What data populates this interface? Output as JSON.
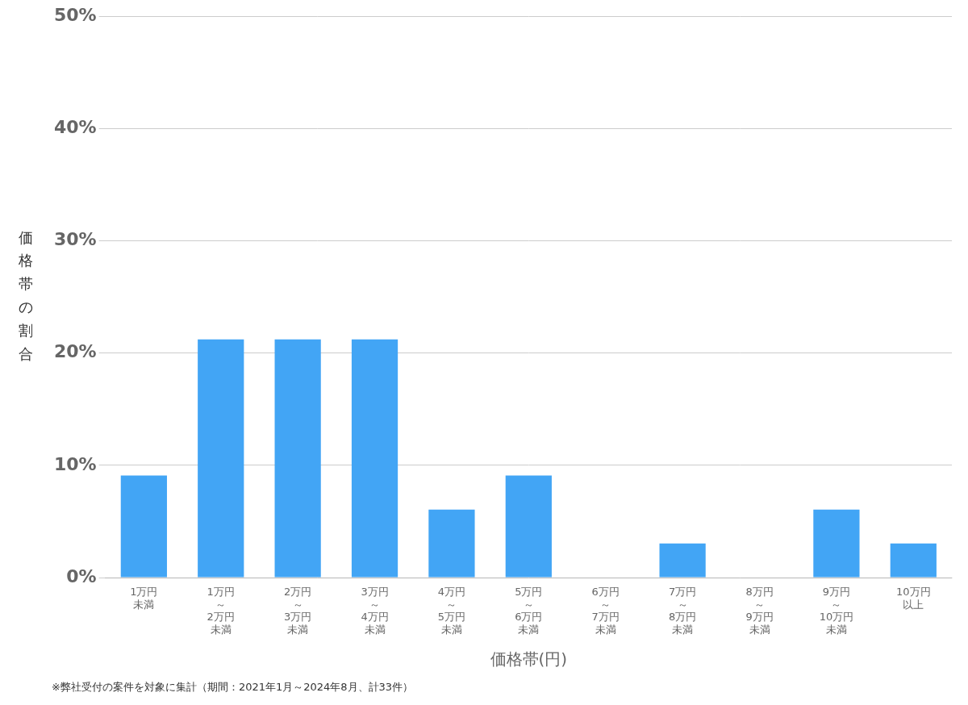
{
  "chart_data": {
    "type": "bar",
    "categories": [
      "1万円\n未満",
      "1万円\n～\n2万円\n未満",
      "2万円\n～\n3万円\n未満",
      "3万円\n～\n4万円\n未満",
      "4万円\n～\n5万円\n未満",
      "5万円\n～\n6万円\n未満",
      "6万円\n～\n7万円\n未満",
      "7万円\n～\n8万円\n未満",
      "8万円\n～\n9万円\n未満",
      "9万円\n～\n10万円\n未満",
      "10万円\n以上"
    ],
    "values": [
      9.09,
      21.21,
      21.21,
      21.21,
      6.06,
      9.09,
      0,
      3.03,
      0,
      6.06,
      3.03
    ],
    "color": "#42A5F5",
    "xlabel": "価格帯(円)",
    "ylabel": "価格帯の割合",
    "annotations": [
      "※弊社受付の案件を対象に集計（期間：2021年1月～2024年8月、計33件）"
    ],
    "ylim": [
      0,
      50
    ],
    "yticks": [
      {
        "value": 0,
        "label": "0%"
      },
      {
        "value": 10,
        "label": "10%"
      },
      {
        "value": 20,
        "label": "20%"
      },
      {
        "value": 30,
        "label": "30%"
      },
      {
        "value": 40,
        "label": "40%"
      },
      {
        "value": 50,
        "label": "50%"
      }
    ],
    "grid": true
  }
}
